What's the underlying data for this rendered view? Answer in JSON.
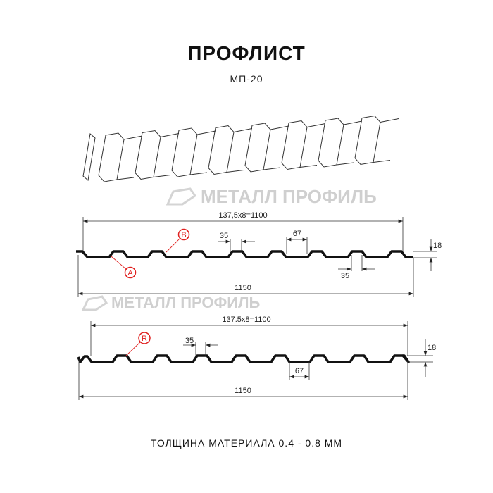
{
  "title": "ПРОФЛИСТ",
  "subtitle": "МП-20",
  "watermark": "МЕТАЛЛ ПРОФИЛЬ",
  "profile1": {
    "pitch_label": "137,5x8=1100",
    "width_label": "1150",
    "top_width_label": "35",
    "bottom_width_label": "67",
    "bottom_shelf_label": "35",
    "height_label": "18",
    "marker_a": "A",
    "marker_b": "B"
  },
  "profile2": {
    "pitch_label": "137.5x8=1100",
    "width_label": "1150",
    "top_width_label": "35",
    "bottom_width_label": "67",
    "height_label": "18",
    "marker_r": "R"
  },
  "footer": "ТОЛЩИНА МАТЕРИАЛА 0.4 - 0.8 ММ",
  "colors": {
    "marker": "#e0201f",
    "profile": "#111111",
    "watermark": "#cfcfcf"
  }
}
